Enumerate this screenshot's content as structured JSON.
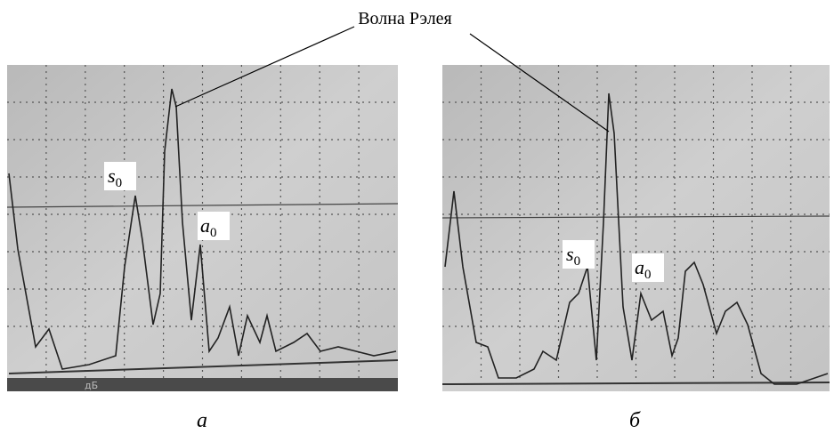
{
  "figure": {
    "title": "Волна Рэлея",
    "panels": [
      {
        "caption": "а",
        "screen_text": "дБ",
        "labels": [
          {
            "letter": "s",
            "subscript": "0"
          },
          {
            "letter": "a",
            "subscript": "0"
          }
        ]
      },
      {
        "caption": "б",
        "labels": [
          {
            "letter": "s",
            "subscript": "0"
          },
          {
            "letter": "a",
            "subscript": "0"
          }
        ]
      }
    ]
  }
}
